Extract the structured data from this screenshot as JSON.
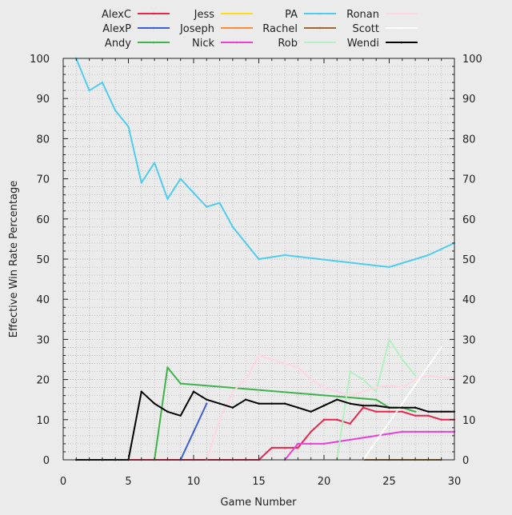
{
  "chart_data": {
    "type": "line",
    "title": "",
    "xlabel": "Game Number",
    "ylabel": "Effective Win Rate Percentage",
    "xlim": [
      0,
      30
    ],
    "ylim": [
      0,
      100
    ],
    "x_ticks": [
      "0",
      "5",
      "10",
      "15",
      "20",
      "25",
      "30"
    ],
    "y_ticks": [
      "0",
      "10",
      "20",
      "30",
      "40",
      "50",
      "60",
      "70",
      "80",
      "90",
      "100"
    ],
    "grid": true,
    "legend_position": "top",
    "series": [
      {
        "name": "AlexC",
        "color": "#e8264c",
        "marker": "dot",
        "x": [
          1,
          2,
          3,
          4,
          5,
          6,
          7,
          8,
          9,
          10,
          11,
          12,
          13,
          14,
          15,
          16,
          17,
          18,
          19,
          20,
          21,
          22,
          23,
          24,
          25,
          26,
          27,
          28,
          29,
          30
        ],
        "y": [
          0,
          0,
          0,
          0,
          0,
          0,
          0,
          0,
          0,
          0,
          0,
          0,
          0,
          0,
          0,
          3,
          3,
          3,
          7,
          10,
          10,
          9,
          13,
          12,
          12,
          12,
          11,
          11,
          10,
          10
        ]
      },
      {
        "name": "AlexP",
        "color": "#3d5fd6",
        "marker": "dot",
        "x": [
          9,
          10,
          11
        ],
        "y": [
          0,
          7,
          14
        ]
      },
      {
        "name": "Andy",
        "color": "#3db34a",
        "marker": "dot",
        "x": [
          7,
          8,
          9,
          24,
          25,
          26,
          27
        ],
        "y": [
          0,
          23,
          19,
          15,
          13,
          13,
          12
        ]
      },
      {
        "name": "Jess",
        "color": "#ffdc1a",
        "marker": "dot",
        "x": [],
        "y": []
      },
      {
        "name": "Joseph",
        "color": "#ff8c3a",
        "marker": "dot",
        "x": [],
        "y": []
      },
      {
        "name": "Nick",
        "color": "#e840d8",
        "marker": "dot",
        "x": [
          17,
          18,
          19,
          20,
          21,
          22,
          23,
          24,
          25,
          26,
          27,
          28,
          29,
          30
        ],
        "y": [
          0,
          4,
          4,
          4,
          4.5,
          5,
          5.5,
          6,
          6.5,
          7,
          7,
          7,
          7,
          7
        ]
      },
      {
        "name": "PA",
        "color": "#4dcdf0",
        "marker": "dot",
        "x": [
          1,
          2,
          3,
          4,
          5,
          6,
          7,
          8,
          9,
          10,
          11,
          12,
          13,
          15,
          17,
          25,
          28,
          30
        ],
        "y": [
          100,
          92,
          94,
          87,
          83,
          69,
          74,
          65,
          70,
          66.5,
          63,
          64,
          58,
          50,
          51,
          48,
          51,
          54
        ]
      },
      {
        "name": "Rachel",
        "color": "#9a6a32",
        "marker": "dot",
        "x": [
          23,
          24,
          25,
          26,
          27,
          28,
          29
        ],
        "y": [
          0,
          0,
          0,
          0,
          0,
          0,
          0
        ]
      },
      {
        "name": "Rob",
        "color": "#b4f0c0",
        "marker": "dot",
        "x": [
          21,
          22,
          23,
          24,
          25,
          26,
          27
        ],
        "y": [
          0,
          22,
          20,
          17,
          30,
          25,
          21
        ]
      },
      {
        "name": "Ronan",
        "color": "#ffd6e4",
        "marker": "dot",
        "x": [
          11,
          12,
          13,
          14,
          15,
          16,
          17,
          18,
          19,
          20,
          21,
          22,
          23,
          24,
          25,
          26,
          27,
          28,
          29,
          30
        ],
        "y": [
          0,
          10,
          17,
          20,
          26,
          25,
          24,
          23,
          20,
          18,
          17,
          16,
          17,
          18,
          18.5,
          18,
          20,
          21,
          20.5,
          20.5
        ]
      },
      {
        "name": "Scott",
        "color": "#ffffff",
        "marker": "dot",
        "x": [
          23,
          29
        ],
        "y": [
          0,
          28
        ]
      },
      {
        "name": "Wendi",
        "color": "#000000",
        "marker": "dot",
        "x": [
          1,
          2,
          3,
          4,
          5,
          6,
          7,
          8,
          9,
          10,
          11,
          12,
          13,
          14,
          15,
          16,
          17,
          18,
          19,
          20,
          21,
          22,
          23,
          24,
          25,
          26,
          27,
          28,
          29,
          30
        ],
        "y": [
          0,
          0,
          0,
          0,
          0,
          17,
          14,
          12,
          11,
          17,
          15,
          14,
          13,
          15,
          14,
          14,
          14,
          13,
          12,
          13.5,
          15,
          14,
          13.5,
          13.5,
          13,
          13,
          13,
          12,
          12,
          12
        ]
      }
    ]
  }
}
